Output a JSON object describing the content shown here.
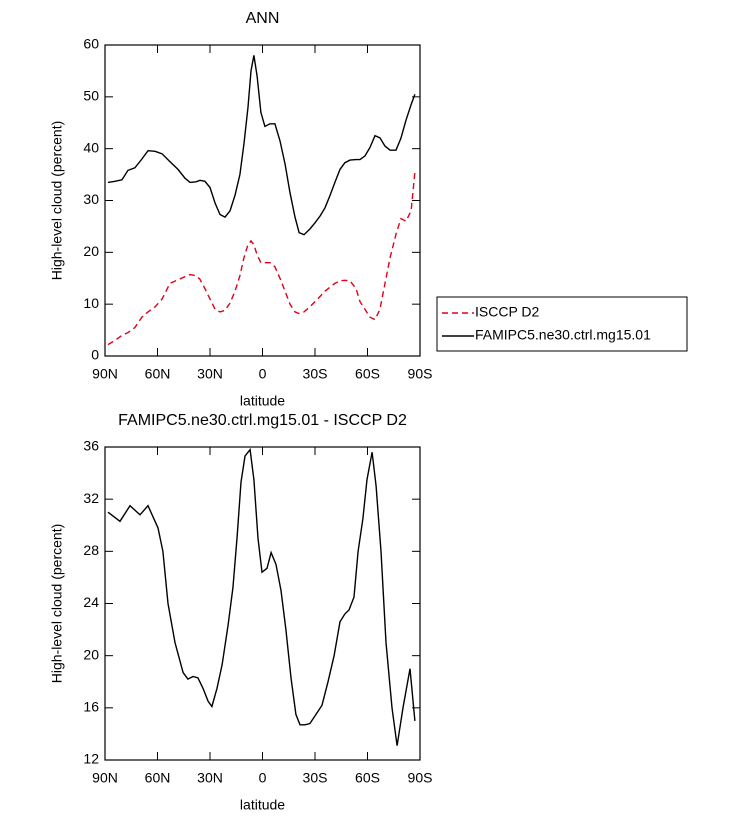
{
  "chart_data": [
    {
      "type": "line",
      "title": "ANN",
      "xlabel": "latitude",
      "ylabel": "High-level cloud (percent)",
      "xlim": [
        90,
        -90
      ],
      "xticks": [
        {
          "value": 90,
          "label": "90N"
        },
        {
          "value": 60,
          "label": "60N"
        },
        {
          "value": 30,
          "label": "30N"
        },
        0,
        {
          "value": -30,
          "label": "30S"
        },
        {
          "value": -60,
          "label": "60S"
        },
        {
          "value": -90,
          "label": "90S"
        }
      ],
      "ylim": [
        0,
        60
      ],
      "yticks": [
        0,
        10,
        20,
        30,
        40,
        50,
        60
      ],
      "legend": "outside right",
      "x": [
        88.3,
        84.3,
        80.3,
        76.9,
        72.9,
        68.9,
        65.4,
        61.4,
        57.4,
        52.9,
        48.3,
        44.3,
        41.4,
        38,
        35.7,
        32.9,
        30,
        27.1,
        24.3,
        21.4,
        18.6,
        15.7,
        12.9,
        10.6,
        8.3,
        6.6,
        4.9,
        3.1,
        0.9,
        -1.4,
        -4.3,
        -7.1,
        -10,
        -12.9,
        -15.7,
        -18.6,
        -20.9,
        -23.7,
        -27.1,
        -30,
        -32.9,
        -35.7,
        -38.6,
        -41.4,
        -44.3,
        -47.1,
        -50,
        -53.4,
        -55.7,
        -58.6,
        -61.4,
        -64.3,
        -67.1,
        -70,
        -72.9,
        -76.3,
        -79.1,
        -82,
        -84.9,
        -87.1
      ],
      "series": [
        {
          "name": "ISCCP D2",
          "color": "#e0001a",
          "dashed": true,
          "values": [
            2.2,
            3,
            4,
            4.5,
            5.5,
            7.5,
            8.5,
            9.5,
            11,
            14,
            14.7,
            15.3,
            15.7,
            15.5,
            14.8,
            13,
            11,
            9,
            8.5,
            8.8,
            10.2,
            12.5,
            15.5,
            19,
            21.5,
            22.2,
            21.5,
            19.5,
            18,
            18,
            18,
            17.2,
            15,
            12.5,
            10,
            8.5,
            8.2,
            8.5,
            9.5,
            10.5,
            11.5,
            12.5,
            13.3,
            14,
            14.5,
            14.6,
            14.5,
            13,
            10.5,
            9,
            7.5,
            7,
            9,
            14,
            19,
            23.5,
            26.5,
            26,
            28,
            35.5
          ]
        },
        {
          "name": "FAMIPC5.ne30.ctrl.mg15.01",
          "color": "#000000",
          "dashed": false,
          "values": [
            33.5,
            33.7,
            34,
            35.8,
            36.3,
            38,
            39.6,
            39.5,
            39,
            37.5,
            36,
            34.3,
            33.5,
            33.6,
            33.9,
            33.7,
            32.5,
            29.5,
            27.3,
            26.8,
            28,
            31,
            35,
            41,
            48,
            55,
            58,
            54,
            47,
            44.3,
            44.8,
            44.8,
            41.5,
            37,
            31.5,
            26.8,
            23.8,
            23.4,
            24.5,
            25.7,
            27,
            28.6,
            31,
            33.5,
            36,
            37.3,
            37.8,
            37.9,
            37.9,
            38.6,
            40.2,
            42.5,
            42.1,
            40.5,
            39.7,
            39.7,
            42,
            45.5,
            48.5,
            50.5
          ]
        }
      ]
    },
    {
      "type": "line",
      "title": "FAMIPC5.ne30.ctrl.mg15.01 - ISCCP D2",
      "xlabel": "latitude",
      "ylabel": "High-level cloud (percent)",
      "xlim": [
        90,
        -90
      ],
      "xticks": [
        {
          "value": 90,
          "label": "90N"
        },
        {
          "value": 60,
          "label": "60N"
        },
        {
          "value": 30,
          "label": "30N"
        },
        0,
        {
          "value": -30,
          "label": "30S"
        },
        {
          "value": -60,
          "label": "60S"
        },
        {
          "value": -90,
          "label": "90S"
        }
      ],
      "ylim": [
        12,
        36
      ],
      "yticks": [
        12,
        16,
        20,
        24,
        28,
        32,
        36
      ],
      "x": [
        88.3,
        81.4,
        75.7,
        70,
        65.4,
        59.7,
        56.9,
        54,
        50,
        45.4,
        42.6,
        39.7,
        36.9,
        34,
        31.1,
        28.9,
        26,
        23.1,
        19.7,
        16.9,
        14.6,
        12.3,
        10,
        7.1,
        4.9,
        2.6,
        0.3,
        -2.6,
        -4.9,
        -7.7,
        -10.6,
        -13.4,
        -16.3,
        -19.1,
        -21.4,
        -24.3,
        -27.1,
        -30.6,
        -34,
        -37.4,
        -40.9,
        -44.3,
        -47.1,
        -49.4,
        -52.3,
        -54.6,
        -57.4,
        -59.7,
        -62.6,
        -64.9,
        -67.7,
        -70.6,
        -74,
        -76.9,
        -80.3,
        -84.3,
        -87.1
      ],
      "series": [
        {
          "color": "#000000",
          "dashed": false,
          "values": [
            31,
            30.3,
            31.5,
            30.8,
            31.5,
            29.8,
            28,
            24,
            21,
            18.7,
            18.2,
            18.4,
            18.3,
            17.5,
            16.5,
            16.1,
            17.5,
            19.3,
            22.3,
            25.2,
            29,
            33.3,
            35.3,
            35.8,
            33.5,
            29,
            26.4,
            26.7,
            27.9,
            27,
            25,
            22,
            18.3,
            15.5,
            14.7,
            14.7,
            14.8,
            15.5,
            16.2,
            18,
            20,
            22.6,
            23.2,
            23.5,
            24.5,
            28,
            30.5,
            33.5,
            35.6,
            33,
            28,
            21,
            16,
            13.1,
            16,
            19,
            15
          ]
        }
      ]
    }
  ]
}
